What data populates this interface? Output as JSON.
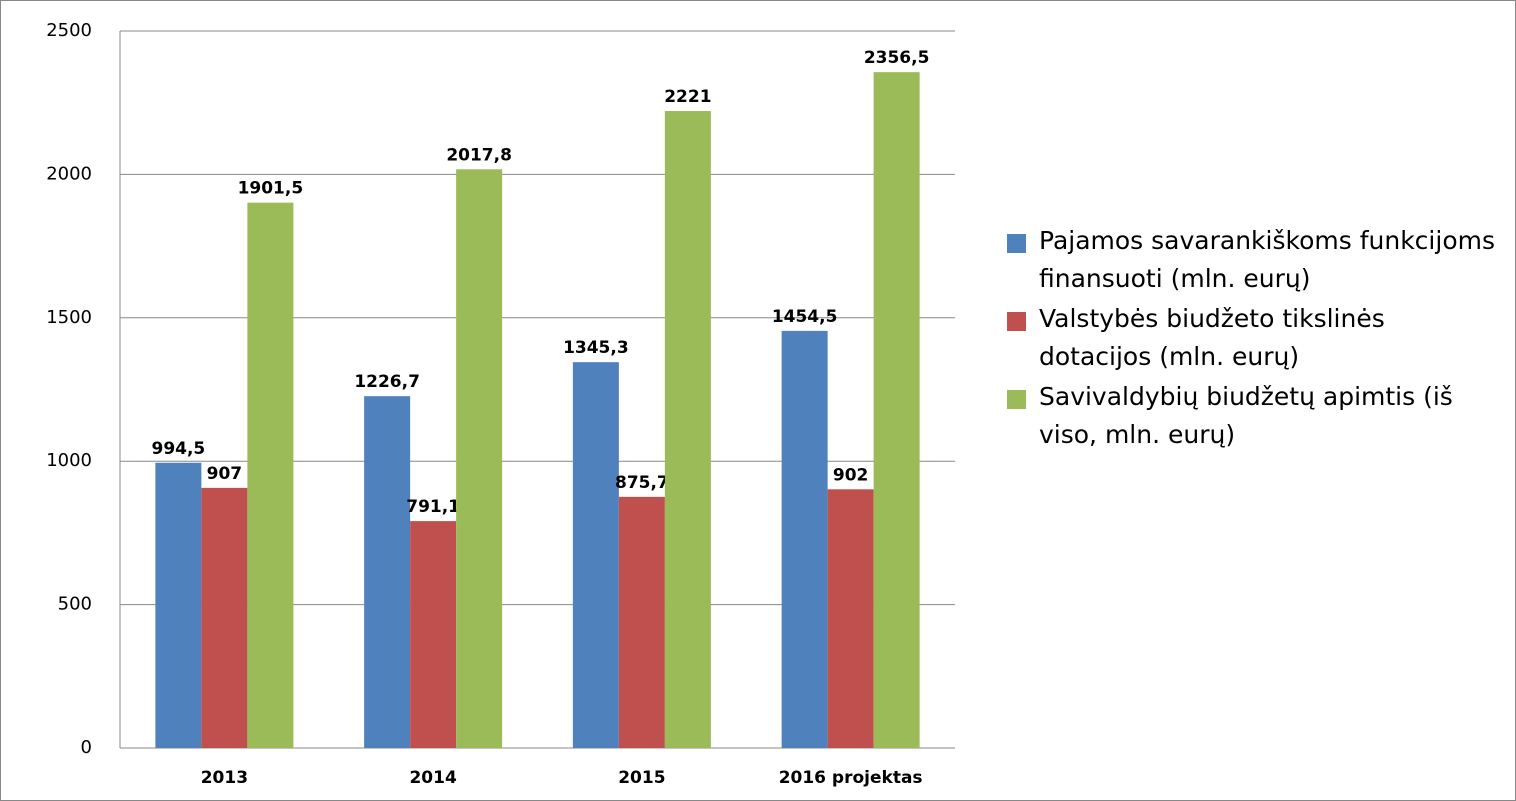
{
  "chart_data": {
    "type": "bar",
    "categories": [
      "2013",
      "2014",
      "2015",
      "2016 projektas"
    ],
    "series": [
      {
        "name": "Pajamos savarankiškoms funkcijoms finansuoti (mln. eurų)",
        "color": "#4f81bd",
        "values": [
          994.5,
          1226.7,
          1345.3,
          1454.5
        ],
        "value_labels": [
          "994,5",
          "1226,7",
          "1345,3",
          "1454,5"
        ]
      },
      {
        "name": "Valstybės biudžeto tikslinės dotacijos (mln. eurų)",
        "color": "#c0504d",
        "values": [
          907,
          791.1,
          875.7,
          902
        ],
        "value_labels": [
          "907",
          "791,1",
          "875,7",
          "902"
        ]
      },
      {
        "name": "Savivaldybių biudžetų apimtis (iš viso, mln. eurų)",
        "color": "#9bbb59",
        "values": [
          1901.5,
          2017.8,
          2221,
          2356.5
        ],
        "value_labels": [
          "1901,5",
          "2017,8",
          "2221",
          "2356,5"
        ]
      }
    ],
    "ylim": [
      0,
      2500
    ],
    "yticks": [
      0,
      500,
      1000,
      1500,
      2000,
      2500
    ],
    "grid": true,
    "legend": "right"
  }
}
